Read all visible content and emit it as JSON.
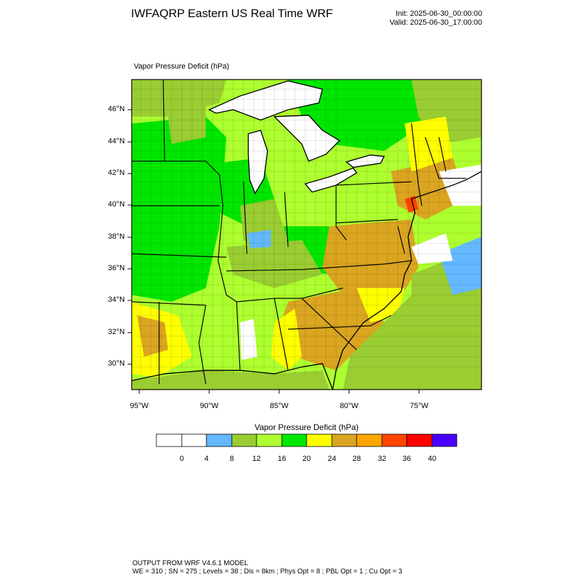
{
  "header": {
    "title": "IWFAQRP Eastern US Real Time WRF",
    "init": "Init: 2025-06-30_00:00:00",
    "valid": "Valid: 2025-06-30_17:00:00"
  },
  "map": {
    "field_label": "Vapor Pressure Deficit   (hPa)",
    "lat_labels": [
      "46°N",
      "44°N",
      "42°N",
      "40°N",
      "38°N",
      "36°N",
      "34°N",
      "32°N",
      "30°N"
    ],
    "lon_labels": [
      "95°W",
      "90°W",
      "85°W",
      "80°W",
      "75°W"
    ],
    "water_color": "#ffffff",
    "land_colors": {
      "low": "#9acd32",
      "mid_low": "#adff2f",
      "mid": "#00e600",
      "high": "#ffff00",
      "very_high": "#daa520",
      "extreme": "#ff8c00"
    }
  },
  "colorbar": {
    "title": "Vapor Pressure Deficit   (hPa)",
    "labels": [
      "0",
      "4",
      "8",
      "12",
      "16",
      "20",
      "24",
      "28",
      "32",
      "36",
      "40"
    ],
    "colors": [
      "#ffffff",
      "#ffffff",
      "#63b8ff",
      "#9acd32",
      "#adff2f",
      "#00e600",
      "#ffff00",
      "#daa520",
      "#ffa500",
      "#ff4500",
      "#ff0000",
      "#4a00ff"
    ]
  },
  "footer": {
    "line1": "OUTPUT FROM WRF V4.6.1 MODEL",
    "line2": "WE = 310 ; SN = 275 ; Levels = 38 ; Dis = 8km ; Phys Opt = 8 ; PBL Opt = 1 ; Cu Opt = 3"
  }
}
